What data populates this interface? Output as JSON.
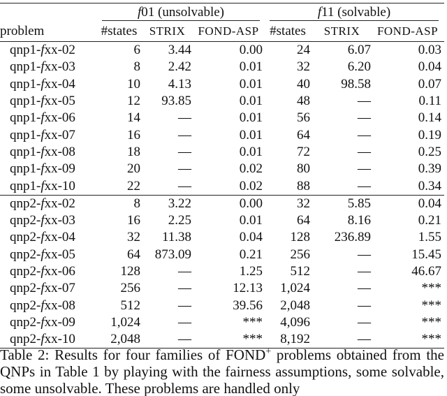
{
  "table": {
    "problem_header": "problem",
    "groups": [
      {
        "var": "f",
        "label": "01 (unsolvable)"
      },
      {
        "var": "f",
        "label": "11 (solvable)"
      }
    ],
    "columns": [
      "#states",
      "STRIX",
      "FOND-ASP",
      "#states",
      "STRIX",
      "FOND-ASP"
    ],
    "sections": [
      [
        {
          "problem": [
            "qnp1-",
            "f",
            "xx-02"
          ],
          "cells": [
            "6",
            "3.44",
            "0.00",
            "24",
            "6.07",
            "0.03"
          ]
        },
        {
          "problem": [
            "qnp1-",
            "f",
            "xx-03"
          ],
          "cells": [
            "8",
            "2.42",
            "0.01",
            "32",
            "6.20",
            "0.04"
          ]
        },
        {
          "problem": [
            "qnp1-",
            "f",
            "xx-04"
          ],
          "cells": [
            "10",
            "4.13",
            "0.01",
            "40",
            "98.58",
            "0.07"
          ]
        },
        {
          "problem": [
            "qnp1-",
            "f",
            "xx-05"
          ],
          "cells": [
            "12",
            "93.85",
            "0.01",
            "48",
            "—",
            "0.11"
          ]
        },
        {
          "problem": [
            "qnp1-",
            "f",
            "xx-06"
          ],
          "cells": [
            "14",
            "—",
            "0.01",
            "56",
            "—",
            "0.14"
          ]
        },
        {
          "problem": [
            "qnp1-",
            "f",
            "xx-07"
          ],
          "cells": [
            "16",
            "—",
            "0.01",
            "64",
            "—",
            "0.19"
          ]
        },
        {
          "problem": [
            "qnp1-",
            "f",
            "xx-08"
          ],
          "cells": [
            "18",
            "—",
            "0.01",
            "72",
            "—",
            "0.25"
          ]
        },
        {
          "problem": [
            "qnp1-",
            "f",
            "xx-09"
          ],
          "cells": [
            "20",
            "—",
            "0.02",
            "80",
            "—",
            "0.39"
          ]
        },
        {
          "problem": [
            "qnp1-",
            "f",
            "xx-10"
          ],
          "cells": [
            "22",
            "—",
            "0.02",
            "88",
            "—",
            "0.34"
          ]
        }
      ],
      [
        {
          "problem": [
            "qnp2-",
            "f",
            "xx-02"
          ],
          "cells": [
            "8",
            "3.22",
            "0.00",
            "32",
            "5.85",
            "0.04"
          ]
        },
        {
          "problem": [
            "qnp2-",
            "f",
            "xx-03"
          ],
          "cells": [
            "16",
            "2.25",
            "0.01",
            "64",
            "8.16",
            "0.21"
          ]
        },
        {
          "problem": [
            "qnp2-",
            "f",
            "xx-04"
          ],
          "cells": [
            "32",
            "11.38",
            "0.04",
            "128",
            "236.89",
            "1.55"
          ]
        },
        {
          "problem": [
            "qnp2-",
            "f",
            "xx-05"
          ],
          "cells": [
            "64",
            "873.09",
            "0.21",
            "256",
            "—",
            "15.45"
          ]
        },
        {
          "problem": [
            "qnp2-",
            "f",
            "xx-06"
          ],
          "cells": [
            "128",
            "—",
            "1.25",
            "512",
            "—",
            "46.67"
          ]
        },
        {
          "problem": [
            "qnp2-",
            "f",
            "xx-07"
          ],
          "cells": [
            "256",
            "—",
            "12.13",
            "1,024",
            "—",
            "***"
          ]
        },
        {
          "problem": [
            "qnp2-",
            "f",
            "xx-08"
          ],
          "cells": [
            "512",
            "—",
            "39.56",
            "2,048",
            "—",
            "***"
          ]
        },
        {
          "problem": [
            "qnp2-",
            "f",
            "xx-09"
          ],
          "cells": [
            "1,024",
            "—",
            "***",
            "4,096",
            "—",
            "***"
          ]
        },
        {
          "problem": [
            "qnp2-",
            "f",
            "xx-10"
          ],
          "cells": [
            "2,048",
            "—",
            "***",
            "8,192",
            "—",
            "***"
          ]
        }
      ]
    ]
  },
  "caption": {
    "before": "Table 2: Results for four families of FOND",
    "sup": "+",
    "after": " problems obtained from the QNPs in Table 1 by playing with the fairness assumptions, some solvable, some unsolvable. These problems are handled only"
  }
}
